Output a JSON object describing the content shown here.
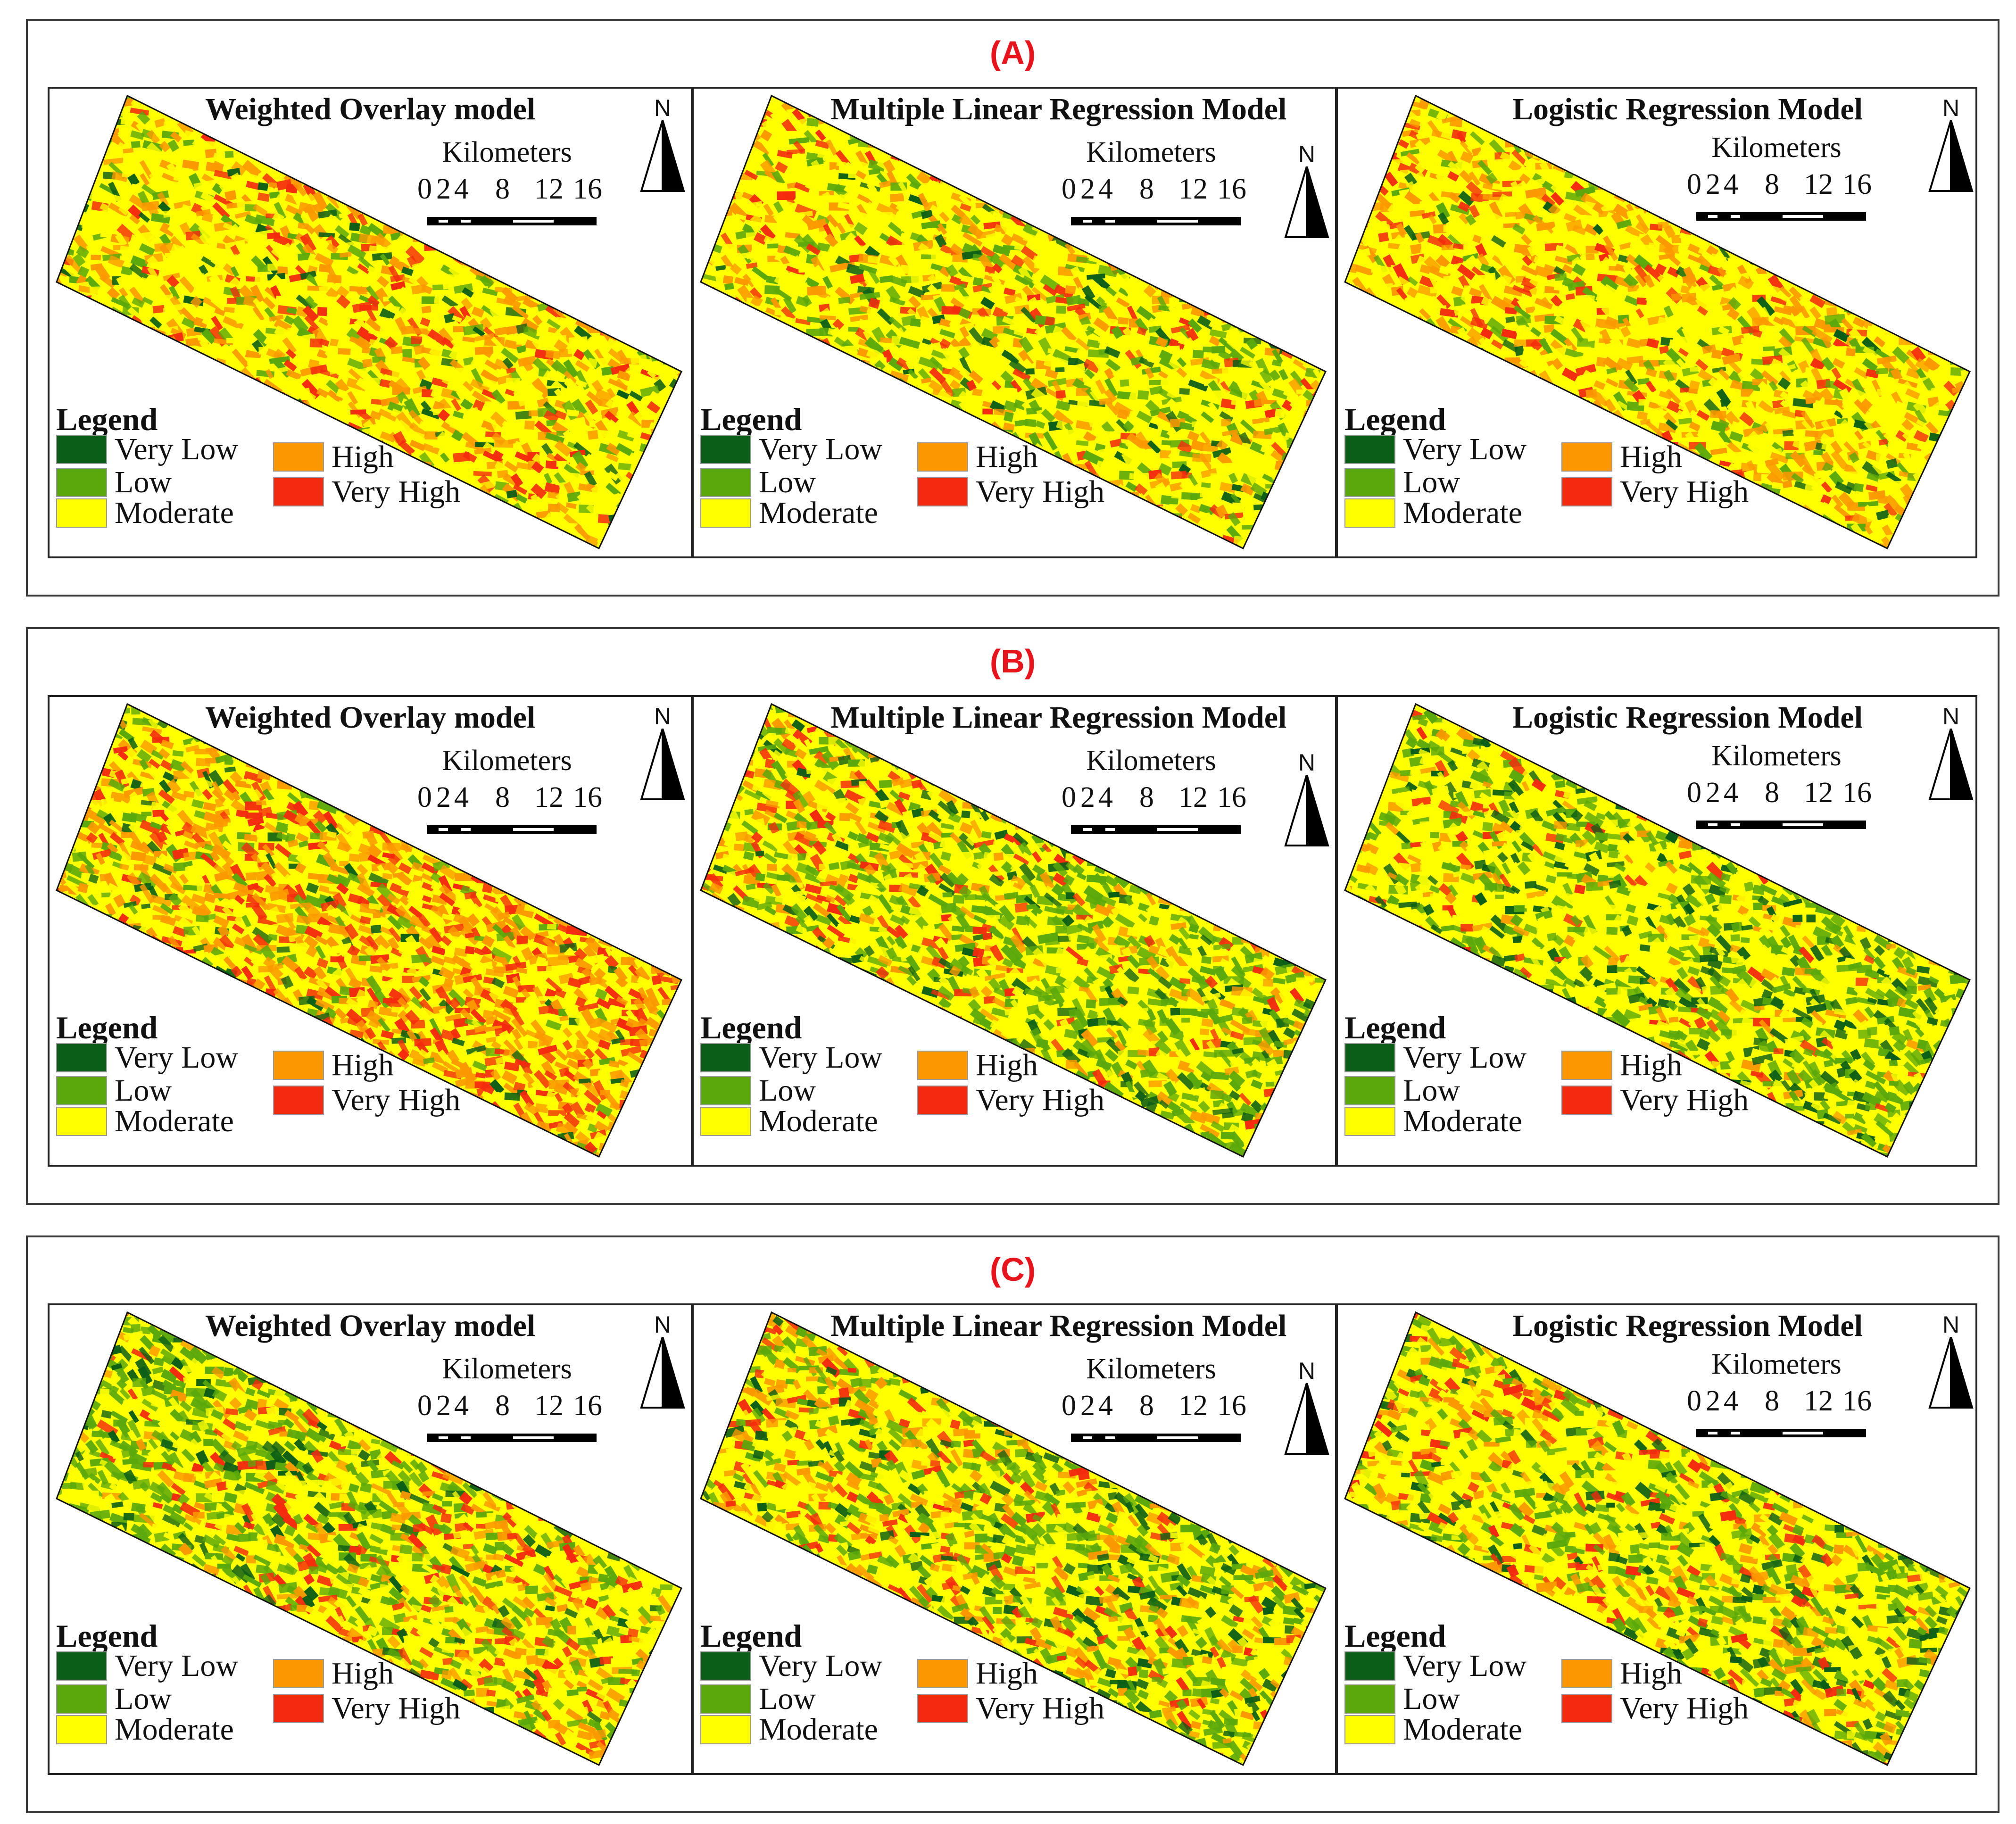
{
  "sections": [
    {
      "label": "(A)",
      "panels": [
        {
          "title": "Weighted Overlay model",
          "palette": [
            5,
            15,
            45,
            25,
            10
          ],
          "hot": "c"
        },
        {
          "title": "Multiple Linear Regression Model",
          "palette": [
            5,
            20,
            45,
            20,
            10
          ],
          "hot": "w"
        },
        {
          "title": "Logistic Regression Model",
          "palette": [
            3,
            12,
            45,
            30,
            10
          ],
          "hot": "w"
        }
      ]
    },
    {
      "label": "(B)",
      "panels": [
        {
          "title": "Weighted Overlay model",
          "palette": [
            5,
            10,
            25,
            40,
            20
          ],
          "hot": "e"
        },
        {
          "title": "Multiple Linear Regression Model",
          "palette": [
            10,
            35,
            30,
            15,
            10
          ],
          "hot": "w"
        },
        {
          "title": "Logistic Regression Model",
          "palette": [
            15,
            30,
            40,
            10,
            5
          ],
          "hot": "w"
        }
      ]
    },
    {
      "label": "(C)",
      "panels": [
        {
          "title": "Weighted Overlay model",
          "palette": [
            10,
            35,
            30,
            15,
            10
          ],
          "hot": "e"
        },
        {
          "title": "Multiple Linear Regression Model",
          "palette": [
            10,
            25,
            35,
            20,
            10
          ],
          "hot": "w"
        },
        {
          "title": "Logistic Regression Model",
          "palette": [
            10,
            25,
            40,
            15,
            10
          ],
          "hot": "w"
        }
      ]
    }
  ],
  "legend": {
    "title": "Legend",
    "classes": [
      {
        "label": "Very Low",
        "color": "#0b5e17"
      },
      {
        "label": "Low",
        "color": "#5aa80c"
      },
      {
        "label": "Moderate",
        "color": "#ffff00"
      },
      {
        "label": "High",
        "color": "#fb9800"
      },
      {
        "label": "Very High",
        "color": "#f42a0e"
      }
    ]
  },
  "scale": {
    "unit": "Kilometers",
    "ticks": [
      "0",
      "2",
      "4",
      "8",
      "12",
      "16"
    ]
  },
  "north_label": "N"
}
